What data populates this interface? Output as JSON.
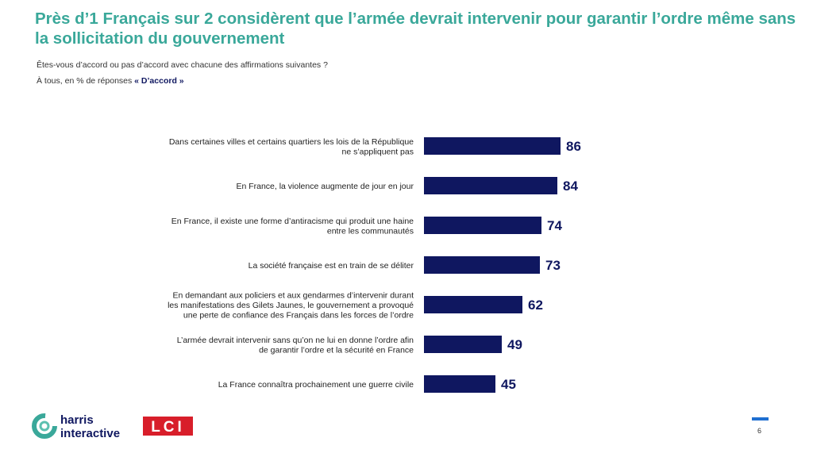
{
  "header": {
    "title": "Près d’1 Français sur 2 considèrent que l’armée devrait intervenir pour garantir l’ordre même sans la sollicitation du gouvernement",
    "subtitle": "Êtes-vous d’accord ou pas d’accord avec chacune des affirmations suivantes ?",
    "base_prefix": "À tous, en % de réponses ",
    "base_emphasis": "« D’accord »"
  },
  "chart_data": {
    "type": "bar",
    "orientation": "horizontal",
    "categories": [
      [
        "Dans certaines villes et certains quartiers les lois de la République",
        "ne s’appliquent pas"
      ],
      [
        "En France, la violence augmente de jour en jour"
      ],
      [
        "En France, il existe une forme d’antiracisme qui produit une haine",
        "entre les communautés"
      ],
      [
        "La société française est en train de se déliter"
      ],
      [
        "En demandant aux policiers et aux gendarmes d’intervenir durant",
        "les manifestations des Gilets Jaunes, le gouvernement a provoqué",
        "une perte de confiance des Français dans les forces de l’ordre"
      ],
      [
        "L’armée devrait intervenir sans qu’on ne lui en donne l’ordre afin",
        "de garantir l’ordre et la sécurité en France"
      ],
      [
        "La France connaîtra prochainement une guerre civile"
      ]
    ],
    "values": [
      86,
      84,
      74,
      73,
      62,
      49,
      45
    ],
    "xlim": [
      0,
      100
    ],
    "bar_color": "#0f1760",
    "value_label_color": "#0f1760",
    "grid": false,
    "legend": "none"
  },
  "footer": {
    "logo_text_line1": "harris",
    "logo_text_line2": "interactive",
    "lci_logo_text": "LCI",
    "page_number": "6",
    "accent_color": "#1f6fd1"
  },
  "colors": {
    "title": "#3aa89a",
    "bar": "#0f1760",
    "lci_red": "#d81e2a"
  }
}
